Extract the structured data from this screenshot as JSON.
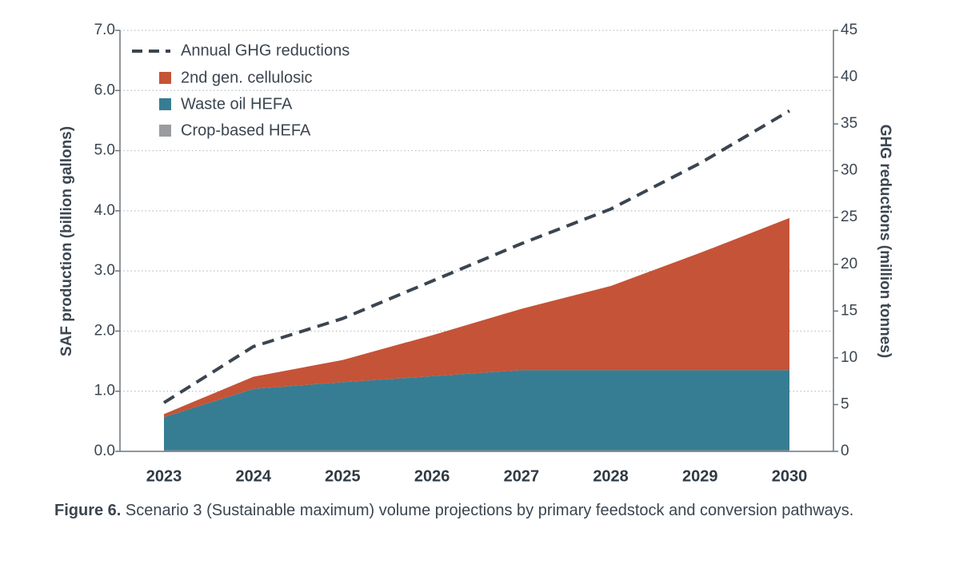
{
  "chart_data": {
    "type": "area",
    "categories": [
      "2023",
      "2024",
      "2025",
      "2026",
      "2027",
      "2028",
      "2029",
      "2030"
    ],
    "left_axis": {
      "label": "SAF production (billion gallons)",
      "ticks": [
        "0.0",
        "1.0",
        "2.0",
        "3.0",
        "4.0",
        "5.0",
        "6.0",
        "7.0"
      ],
      "range": [
        0,
        7
      ]
    },
    "right_axis": {
      "label": "GHG reductions (million tonnes)",
      "ticks": [
        "0",
        "5",
        "10",
        "15",
        "20",
        "25",
        "30",
        "35",
        "40",
        "45"
      ],
      "range": [
        0,
        45
      ]
    },
    "grid": "horizontal dotted",
    "legend_position": "top-left",
    "series": [
      {
        "name": "Crop-based HEFA",
        "type": "stacked-area",
        "axis": "left",
        "color": "#9a9ca0",
        "values": [
          0.02,
          0.02,
          0.02,
          0.02,
          0.02,
          0.02,
          0.02,
          0.02
        ]
      },
      {
        "name": "Waste oil HEFA",
        "type": "stacked-area",
        "axis": "left",
        "color": "#367d93",
        "values": [
          0.55,
          1.02,
          1.13,
          1.23,
          1.33,
          1.33,
          1.33,
          1.33
        ]
      },
      {
        "name": "2nd gen. cellulosic",
        "type": "stacked-area",
        "axis": "left",
        "color": "#c55337",
        "values": [
          0.05,
          0.2,
          0.37,
          0.68,
          1.02,
          1.4,
          1.95,
          2.53
        ]
      },
      {
        "name": "Annual GHG reductions",
        "type": "line",
        "style": "dashed",
        "axis": "right",
        "color": "#3b4550",
        "values": [
          5.2,
          11.2,
          14.2,
          18.2,
          22.2,
          25.9,
          30.8,
          36.4
        ]
      }
    ]
  },
  "legend": {
    "items": [
      {
        "label": "Annual GHG reductions",
        "kind": "dash",
        "color": "#3b4550"
      },
      {
        "label": "2nd gen. cellulosic",
        "kind": "swatch",
        "color": "#c55337"
      },
      {
        "label": "Waste oil HEFA",
        "kind": "swatch",
        "color": "#367d93"
      },
      {
        "label": "Crop-based HEFA",
        "kind": "swatch",
        "color": "#9a9ca0"
      }
    ]
  },
  "caption": {
    "label": "Figure 6.",
    "text": " Scenario 3 (Sustainable maximum) volume projections by primary feedstock and conversion pathways."
  }
}
